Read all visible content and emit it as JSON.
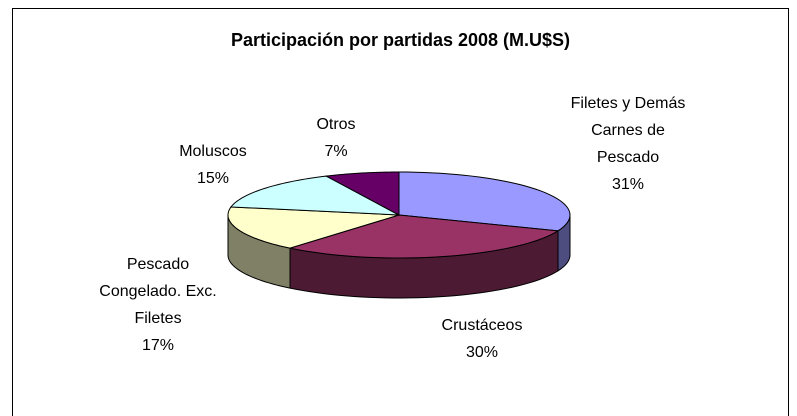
{
  "chart_data": {
    "type": "pie3d",
    "title": "Participación por partidas 2008 (M.U$S)",
    "categories": [
      "Filetes y Demás Carnes de Pescado",
      "Crustáceos",
      "Pescado Congelado. Exc. Filetes",
      "Moluscos",
      "Otros"
    ],
    "values": [
      31,
      30,
      17,
      15,
      7
    ],
    "value_labels": [
      "31%",
      "30%",
      "17%",
      "15%",
      "7%"
    ],
    "colors": [
      "#9999ff",
      "#993366",
      "#ffffcc",
      "#ccffff",
      "#660066"
    ]
  }
}
